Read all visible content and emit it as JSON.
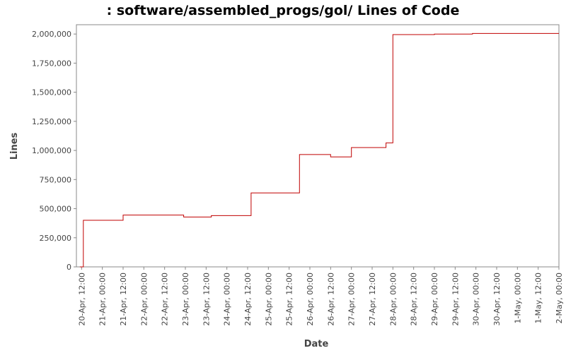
{
  "chart_data": {
    "type": "line",
    "title": ": software/assembled_progs/gol/ Lines of Code",
    "xlabel": "Date",
    "ylabel": "Lines",
    "ylim": [
      0,
      2080000
    ],
    "yticks": [
      0,
      250000,
      500000,
      750000,
      1000000,
      1250000,
      1500000,
      1750000,
      2000000
    ],
    "ytick_labels": [
      "0",
      "250,000",
      "500,000",
      "750,000",
      "1,000,000",
      "1,250,000",
      "1,500,000",
      "1,750,000",
      "2,000,000"
    ],
    "xlim": [
      "2024-04-20 09:00",
      "2024-05-02 00:00"
    ],
    "xtick_labels": [
      "20-Apr, 12:00",
      "21-Apr, 00:00",
      "21-Apr, 12:00",
      "22-Apr, 00:00",
      "22-Apr, 12:00",
      "23-Apr, 00:00",
      "23-Apr, 12:00",
      "24-Apr, 00:00",
      "24-Apr, 12:00",
      "25-Apr, 00:00",
      "25-Apr, 12:00",
      "26-Apr, 00:00",
      "26-Apr, 12:00",
      "27-Apr, 00:00",
      "27-Apr, 12:00",
      "28-Apr, 00:00",
      "28-Apr, 12:00",
      "29-Apr, 00:00",
      "29-Apr, 12:00",
      "30-Apr, 00:00",
      "30-Apr, 12:00",
      "1-May, 00:00",
      "1-May, 12:00",
      "2-May, 00:00"
    ],
    "grid": false,
    "legend": "none",
    "series": [
      {
        "color": "#c00000",
        "step": true,
        "points": [
          [
            "2024-04-20 11:00",
            0
          ],
          [
            "2024-04-20 13:00",
            400000
          ],
          [
            "2024-04-21 12:00",
            445000
          ],
          [
            "2024-04-22 23:00",
            428000
          ],
          [
            "2024-04-23 15:00",
            440000
          ],
          [
            "2024-04-24 14:00",
            635000
          ],
          [
            "2024-04-25 18:00",
            965000
          ],
          [
            "2024-04-26 12:00",
            945000
          ],
          [
            "2024-04-27 00:00",
            1025000
          ],
          [
            "2024-04-27 20:00",
            1065000
          ],
          [
            "2024-04-28 00:00",
            1995000
          ],
          [
            "2024-04-29 00:00",
            2000000
          ],
          [
            "2024-04-29 22:00",
            2005000
          ],
          [
            "2024-05-02 00:00",
            2005000
          ]
        ]
      }
    ]
  }
}
